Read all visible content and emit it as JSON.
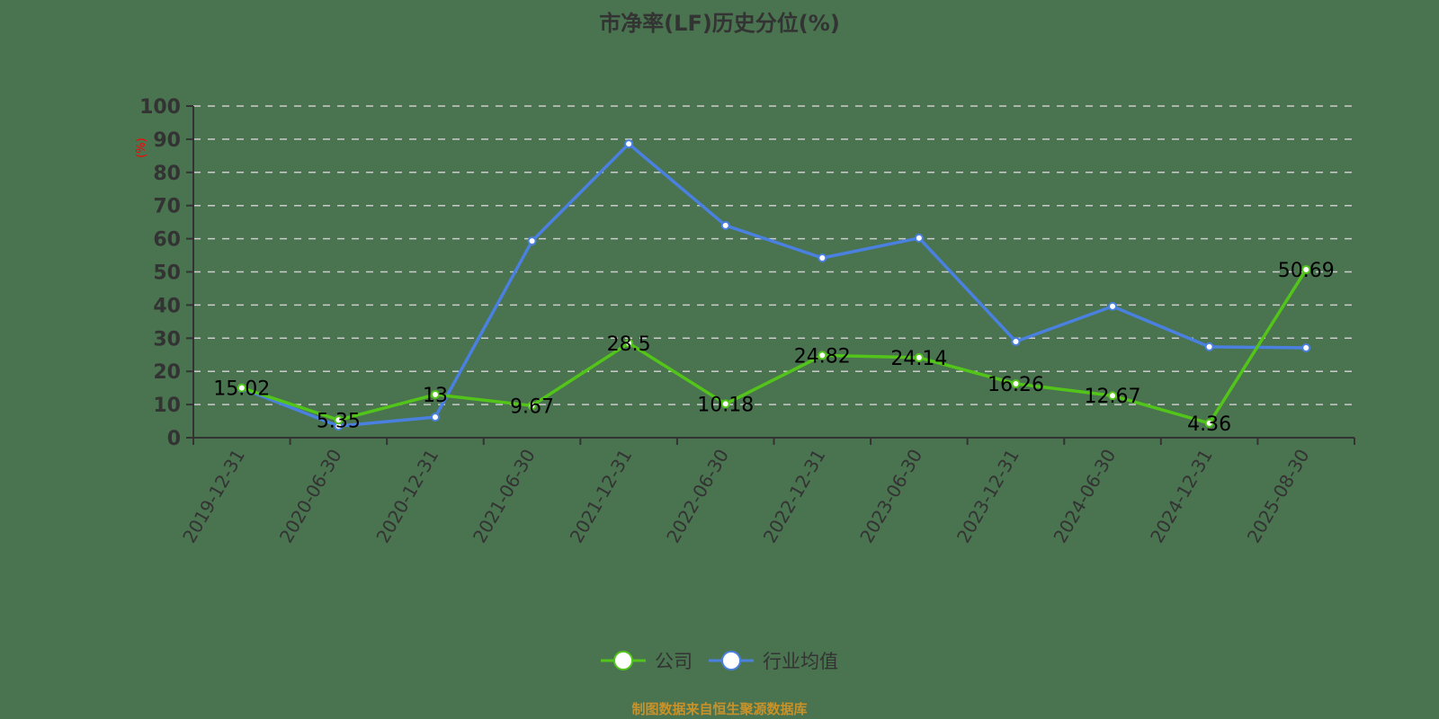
{
  "title": "市净率(LF)历史分位(%)",
  "y_unit": "(%)",
  "legend": [
    {
      "label": "公司",
      "color": "#52c41a"
    },
    {
      "label": "行业均值",
      "color": "#4a80e0"
    }
  ],
  "source_note": "制图数据来自恒生聚源数据库",
  "chart_data": {
    "type": "line",
    "title": "市净率(LF)历史分位(%)",
    "xlabel": "",
    "ylabel": "(%)",
    "ylim": [
      0,
      100
    ],
    "yticks": [
      0,
      10,
      20,
      30,
      40,
      50,
      60,
      70,
      80,
      90,
      100
    ],
    "grid": true,
    "legend_position": "bottom",
    "categories": [
      "2019-12-31",
      "2020-06-30",
      "2020-12-31",
      "2021-06-30",
      "2021-12-31",
      "2022-06-30",
      "2022-12-31",
      "2023-06-30",
      "2023-12-31",
      "2024-06-30",
      "2024-12-31",
      "2025-08-30"
    ],
    "series": [
      {
        "name": "公司",
        "color": "#52c41a",
        "show_labels": true,
        "values": [
          15.02,
          5.35,
          13,
          9.67,
          28.5,
          10.18,
          24.82,
          24.14,
          16.26,
          12.67,
          4.36,
          50.69
        ]
      },
      {
        "name": "行业均值",
        "color": "#4a80e0",
        "show_labels": false,
        "values": [
          14.9,
          3.5,
          6.2,
          59.3,
          88.6,
          64.0,
          54.2,
          60.2,
          29.0,
          39.6,
          27.4,
          27.1
        ]
      }
    ]
  }
}
